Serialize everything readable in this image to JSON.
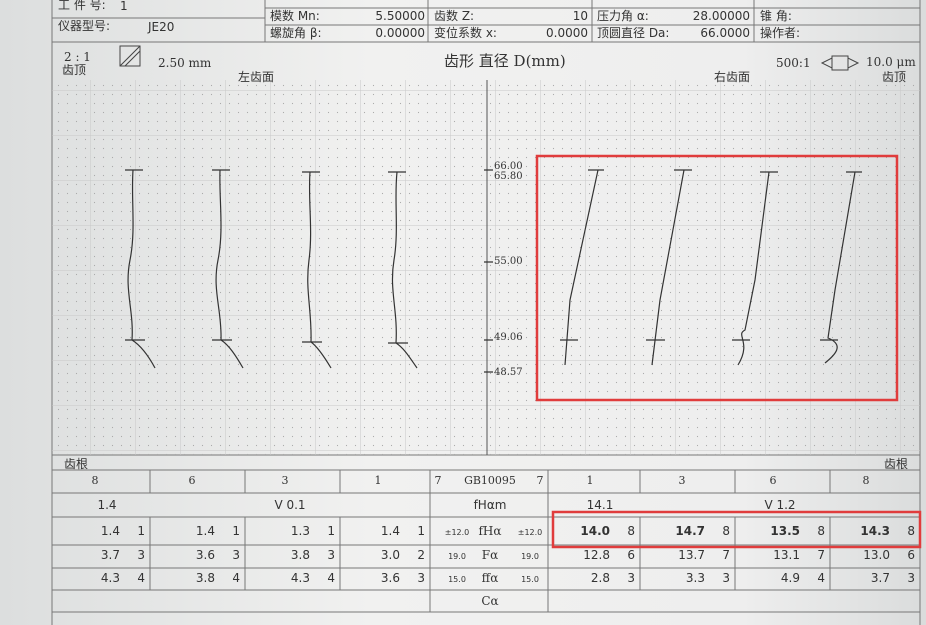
{
  "header": {
    "left_rows": [
      [
        "工 件 号:",
        "1"
      ],
      [
        "仪器型号:",
        "JE20"
      ]
    ],
    "right_rows": [
      [
        "模数 Mn:",
        "5.50000",
        "齿数 Z:",
        "10",
        "压力角 α:",
        "28.00000",
        "锥 角:"
      ],
      [
        "螺旋角 β:",
        "0.00000",
        "变位系数 x:",
        "0.0000",
        "顶圆直径 Da:",
        "66.0000",
        "操作者:"
      ]
    ]
  },
  "chart": {
    "left_scale": "2 : 1",
    "left_tip": "齿顶",
    "length": "2.50 mm",
    "left_flank": "左齿面",
    "title": "齿形 直径 D(mm)",
    "right_scale": "500:1",
    "deviation": "10.0 μm",
    "right_flank": "右齿面",
    "right_tip": "齿顶",
    "diameters": [
      "66.00",
      "65.80",
      "55.00",
      "49.06",
      "48.57"
    ],
    "root_left": "齿根",
    "root_right": "齿根"
  },
  "table": {
    "header": [
      "8",
      "6",
      "3",
      "1",
      "7",
      "GB10095",
      "7",
      "1",
      "3",
      "6",
      "8"
    ],
    "summary": [
      "1.4",
      "V 0.1",
      "fHαm",
      "14.1",
      "V 1.2"
    ],
    "rows": [
      {
        "left": [
          [
            "1.4",
            "1"
          ],
          [
            "1.4",
            "1"
          ],
          [
            "1.3",
            "1"
          ],
          [
            "1.4",
            "1"
          ]
        ],
        "tol_left": "±12.0",
        "name": "fHα",
        "tol_right": "±12.0",
        "right": [
          [
            "14.0",
            "8"
          ],
          [
            "14.7",
            "8"
          ],
          [
            "13.5",
            "8"
          ],
          [
            "14.3",
            "8"
          ]
        ]
      },
      {
        "left": [
          [
            "3.7",
            "3"
          ],
          [
            "3.6",
            "3"
          ],
          [
            "3.8",
            "3"
          ],
          [
            "3.0",
            "2"
          ]
        ],
        "tol_left": "19.0",
        "name": "Fα",
        "tol_right": "19.0",
        "right": [
          [
            "12.8",
            "6"
          ],
          [
            "13.7",
            "7"
          ],
          [
            "13.1",
            "7"
          ],
          [
            "13.0",
            "6"
          ]
        ]
      },
      {
        "left": [
          [
            "4.3",
            "4"
          ],
          [
            "3.8",
            "4"
          ],
          [
            "4.3",
            "4"
          ],
          [
            "3.6",
            "3"
          ]
        ],
        "tol_left": "15.0",
        "name": "ffα",
        "tol_right": "15.0",
        "right": [
          [
            "2.8",
            "3"
          ],
          [
            "3.3",
            "3"
          ],
          [
            "4.9",
            "4"
          ],
          [
            "3.7",
            "3"
          ]
        ]
      }
    ],
    "footer": "Cα"
  }
}
